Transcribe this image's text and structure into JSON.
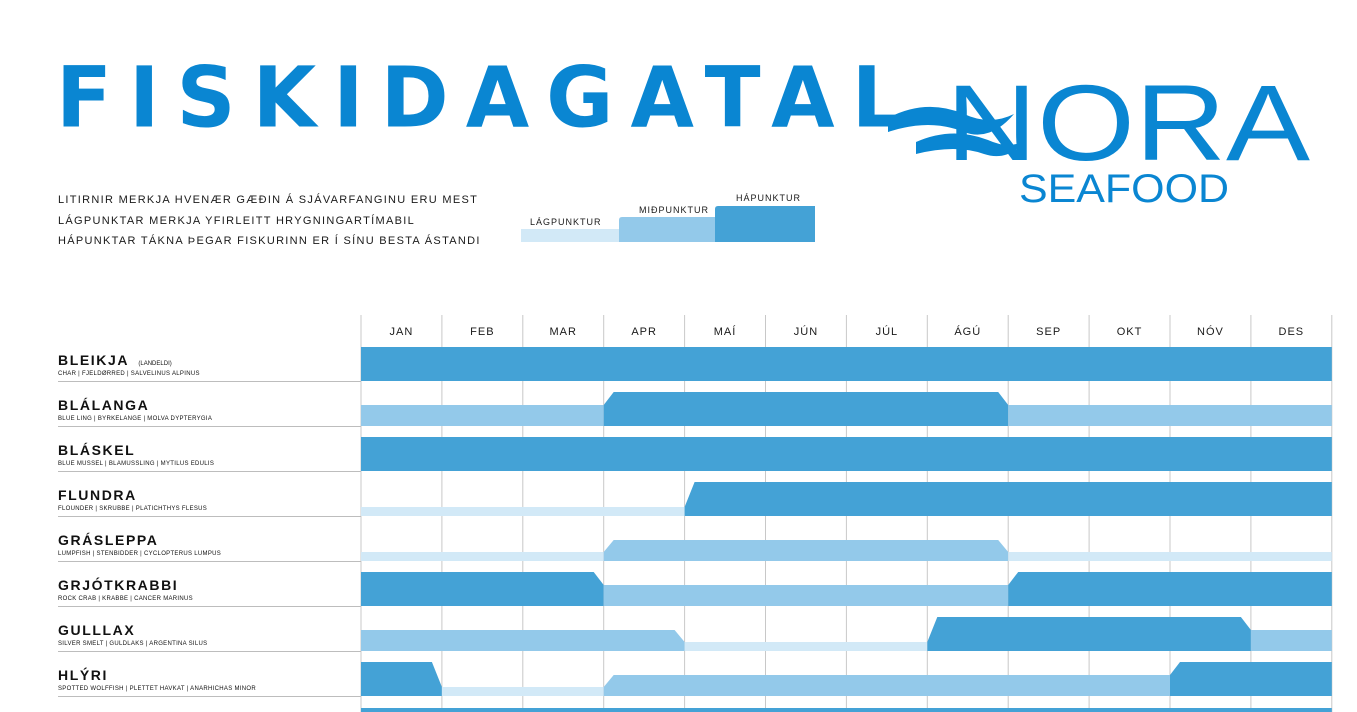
{
  "header": {
    "title": "FISKIDAGATAL",
    "logo_main": "NORA",
    "logo_sub": "SEAFOOD"
  },
  "legend": {
    "lines": [
      "LITIRNIR MERKJA HVENÆR GÆÐIN Á SJÁVARFANGINU ERU MEST",
      "LÁGPUNKTAR MERKJA YFIRLEITT HRYGNINGARTÍMABIL",
      "HÁPUNKTAR TÁKNA ÞEGAR FISKURINN ER Í SÍNU BESTA ÁSTANDI"
    ],
    "low_label": "LÁGPUNKTUR",
    "mid_label": "MIÐPUNKTUR",
    "high_label": "HÁPUNKTUR"
  },
  "colors": {
    "brand": "#0a86d2",
    "low": "#d2e9f7",
    "mid": "#93c9ea",
    "high": "#44a2d6",
    "grid": "#c8c8c8"
  },
  "chart_data": {
    "type": "heatmap",
    "title": "FISKIDAGATAL",
    "months": [
      "JAN",
      "FEB",
      "MAR",
      "APR",
      "MAÍ",
      "JÚN",
      "JÚL",
      "ÁGÚ",
      "SEP",
      "OKT",
      "NÓV",
      "DES"
    ],
    "levels": [
      "LÁGPUNKTUR",
      "MIÐPUNKTUR",
      "HÁPUNKTUR"
    ],
    "level_scale": "1 = low, 2 = mid, 3 = high",
    "species": [
      {
        "name": "BLEIKJA",
        "note": "(LANDELDI)",
        "sub": "CHAR  |  FJELDØRRED  |  SALVELINUS ALPINUS",
        "levels": [
          3,
          3,
          3,
          3,
          3,
          3,
          3,
          3,
          3,
          3,
          3,
          3
        ]
      },
      {
        "name": "BLÁLANGA",
        "note": "",
        "sub": "BLUE LING  |  BYRKELANGE  |  MOLVA DYPTERYGIA",
        "levels": [
          2,
          2,
          2,
          3,
          3,
          3,
          3,
          3,
          2,
          2,
          2,
          2
        ]
      },
      {
        "name": "BLÁSKEL",
        "note": "",
        "sub": "BLUE MUSSEL  |  BLAMUSSLING  |  MYTILUS EDULIS",
        "levels": [
          3,
          3,
          3,
          3,
          3,
          3,
          3,
          3,
          3,
          3,
          3,
          3
        ]
      },
      {
        "name": "FLUNDRA",
        "note": "",
        "sub": "FLOUNDER  |  SKRUBBE  |  PLATICHTHYS FLESUS",
        "levels": [
          1,
          1,
          1,
          1,
          3,
          3,
          3,
          3,
          3,
          3,
          3,
          3
        ]
      },
      {
        "name": "GRÁSLEPPA",
        "note": "",
        "sub": "LUMPFISH  |  STENBIDDER  |  CYCLOPTERUS LUMPUS",
        "levels": [
          1,
          1,
          1,
          2,
          2,
          2,
          2,
          2,
          1,
          1,
          1,
          1
        ]
      },
      {
        "name": "GRJÓTKRABBI",
        "note": "",
        "sub": "ROCK CRAB  |  KRABBE  |  CANCER MARINUS",
        "levels": [
          3,
          3,
          3,
          2,
          2,
          2,
          2,
          2,
          3,
          3,
          3,
          3
        ]
      },
      {
        "name": "GULLLAX",
        "note": "",
        "sub": "SILVER SMELT  |  GULDLAKS  |  ARGENTINA SILUS",
        "levels": [
          2,
          2,
          2,
          2,
          1,
          1,
          1,
          3,
          3,
          3,
          3,
          2
        ]
      },
      {
        "name": "HLÝRI",
        "note": "",
        "sub": "SPOTTED WOLFFISH  |  PLETTET HAVKAT  |  ANARHICHAS MINOR",
        "levels": [
          3,
          1,
          1,
          2,
          2,
          2,
          2,
          2,
          2,
          2,
          3,
          3
        ]
      }
    ]
  }
}
